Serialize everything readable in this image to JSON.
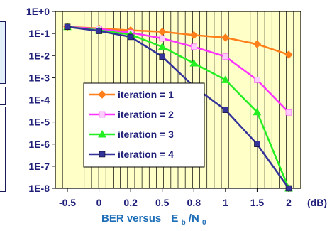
{
  "chart_data": {
    "type": "line",
    "categories": [
      "-0.5",
      "0",
      "0.2",
      "0.5",
      "0.8",
      "1",
      "1.5",
      "2"
    ],
    "x_unit": "(dB)",
    "xlabel_prefix": "BER versus",
    "xlabel_sym": "E",
    "xlabel_sub1": "b",
    "xlabel_mid": "/N",
    "xlabel_sub2": "0",
    "yscale": "log",
    "ylim": [
      1e-08,
      1
    ],
    "y_ticks": [
      "1E+0",
      "1E-1",
      "1E-2",
      "1E-3",
      "1E-4",
      "1E-5",
      "1E-6",
      "1E-7",
      "1E-8"
    ],
    "legend_position": "center",
    "grid": "vertical",
    "series": [
      {
        "name": "iteration = 1",
        "color": "#ff7f1a",
        "marker": "diamond",
        "values": [
          0.2,
          0.17,
          0.14,
          0.12,
          0.085,
          0.065,
          0.033,
          0.011
        ]
      },
      {
        "name": "iteration = 2",
        "color": "#ff33ff",
        "marker": "square",
        "values": [
          0.2,
          0.16,
          0.11,
          0.06,
          0.025,
          0.009,
          0.0008,
          2.7e-05
        ]
      },
      {
        "name": "iteration = 3",
        "color": "#22ee22",
        "marker": "triangle",
        "values": [
          0.2,
          0.14,
          0.09,
          0.025,
          0.0045,
          0.0008,
          2.8e-05,
          1e-08
        ]
      },
      {
        "name": "iteration = 4",
        "color": "#333399",
        "marker": "square",
        "values": [
          0.2,
          0.13,
          0.07,
          0.009,
          0.0004,
          3.5e-05,
          1e-06,
          1e-08
        ]
      }
    ]
  },
  "colors": {
    "plot_background": "#ffffc8",
    "axis_text": "#1f1f7a",
    "xlabel_text": "#1f6fb8",
    "grid": "#000000"
  }
}
